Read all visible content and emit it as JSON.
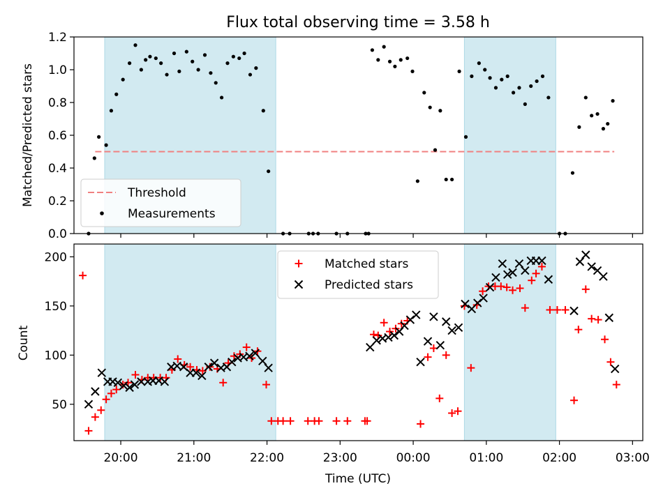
{
  "title": "Flux total observing time = 3.58 h",
  "colors": {
    "threshold": "#f08080",
    "measurement": "#000000",
    "matched": "#ff0000",
    "predicted": "#000000",
    "span": "#add8e6"
  },
  "x_ticks": [
    "20:00",
    "21:00",
    "22:00",
    "23:00",
    "00:00",
    "01:00",
    "02:00",
    "03:00"
  ],
  "chart_data": [
    {
      "type": "scatter",
      "ylabel": "Matched/Predicted stars",
      "xlabel": "",
      "x_unit": "hours since 20:00 UTC",
      "xlim": [
        -0.64,
        7.14
      ],
      "ylim": [
        0,
        1.2
      ],
      "y_ticks": [
        "0.0",
        "0.2",
        "0.4",
        "0.6",
        "0.8",
        "1.0",
        "1.2"
      ],
      "shaded_intervals": [
        [
          -0.22,
          2.12
        ],
        [
          4.7,
          5.95
        ]
      ],
      "legend": {
        "position": "lower-left",
        "entries": [
          "Threshold",
          "Measurements"
        ]
      },
      "threshold": {
        "name": "Threshold",
        "value": 0.5,
        "x_range": [
          -0.35,
          6.75
        ]
      },
      "measurements": {
        "name": "Measurements",
        "points": [
          [
            -0.44,
            0.0
          ],
          [
            -0.36,
            0.46
          ],
          [
            -0.3,
            0.59
          ],
          [
            -0.2,
            0.54
          ],
          [
            -0.13,
            0.75
          ],
          [
            -0.06,
            0.85
          ],
          [
            0.03,
            0.94
          ],
          [
            0.12,
            1.04
          ],
          [
            0.2,
            1.15
          ],
          [
            0.28,
            1.0
          ],
          [
            0.34,
            1.06
          ],
          [
            0.4,
            1.08
          ],
          [
            0.48,
            1.07
          ],
          [
            0.55,
            1.04
          ],
          [
            0.63,
            0.97
          ],
          [
            0.73,
            1.1
          ],
          [
            0.8,
            0.99
          ],
          [
            0.9,
            1.11
          ],
          [
            0.98,
            1.05
          ],
          [
            1.06,
            1.0
          ],
          [
            1.15,
            1.09
          ],
          [
            1.23,
            0.98
          ],
          [
            1.3,
            0.92
          ],
          [
            1.38,
            0.83
          ],
          [
            1.46,
            1.04
          ],
          [
            1.54,
            1.08
          ],
          [
            1.62,
            1.07
          ],
          [
            1.69,
            1.1
          ],
          [
            1.77,
            0.97
          ],
          [
            1.85,
            1.01
          ],
          [
            1.95,
            0.75
          ],
          [
            2.02,
            0.38
          ],
          [
            2.22,
            0.0
          ],
          [
            2.31,
            0.0
          ],
          [
            2.57,
            0.0
          ],
          [
            2.63,
            0.0
          ],
          [
            2.7,
            0.0
          ],
          [
            2.95,
            0.0
          ],
          [
            3.1,
            0.0
          ],
          [
            3.35,
            0.0
          ],
          [
            3.39,
            0.0
          ],
          [
            3.44,
            1.12
          ],
          [
            3.52,
            1.06
          ],
          [
            3.6,
            1.14
          ],
          [
            3.68,
            1.05
          ],
          [
            3.75,
            1.02
          ],
          [
            3.83,
            1.06
          ],
          [
            3.92,
            1.07
          ],
          [
            3.99,
            0.99
          ],
          [
            4.06,
            0.32
          ],
          [
            4.15,
            0.86
          ],
          [
            4.23,
            0.77
          ],
          [
            4.3,
            0.51
          ],
          [
            4.37,
            0.75
          ],
          [
            4.45,
            0.33
          ],
          [
            4.53,
            0.33
          ],
          [
            4.63,
            0.99
          ],
          [
            4.72,
            0.59
          ],
          [
            4.8,
            0.96
          ],
          [
            4.9,
            1.04
          ],
          [
            4.98,
            1.0
          ],
          [
            5.05,
            0.95
          ],
          [
            5.13,
            0.89
          ],
          [
            5.21,
            0.94
          ],
          [
            5.29,
            0.96
          ],
          [
            5.37,
            0.86
          ],
          [
            5.45,
            0.89
          ],
          [
            5.53,
            0.79
          ],
          [
            5.61,
            0.9
          ],
          [
            5.69,
            0.93
          ],
          [
            5.77,
            0.96
          ],
          [
            5.85,
            0.83
          ],
          [
            6.0,
            0.0
          ],
          [
            6.08,
            0.0
          ],
          [
            6.18,
            0.37
          ],
          [
            6.27,
            0.65
          ],
          [
            6.36,
            0.83
          ],
          [
            6.44,
            0.72
          ],
          [
            6.52,
            0.73
          ],
          [
            6.6,
            0.64
          ],
          [
            6.66,
            0.67
          ],
          [
            6.73,
            0.81
          ]
        ]
      }
    },
    {
      "type": "scatter",
      "ylabel": "Count",
      "xlabel": "Time (UTC)",
      "x_unit": "hours since 20:00 UTC",
      "xlim": [
        -0.64,
        7.14
      ],
      "ylim": [
        13,
        213
      ],
      "y_ticks": [
        "50",
        "100",
        "150",
        "200"
      ],
      "shaded_intervals": [
        [
          -0.22,
          2.12
        ],
        [
          4.7,
          5.95
        ]
      ],
      "legend": {
        "position": "upper-center",
        "entries": [
          "Matched stars",
          "Predicted stars"
        ]
      },
      "series": [
        {
          "name": "Matched stars",
          "marker": "plus",
          "points": [
            [
              -0.52,
              181
            ],
            [
              -0.44,
              23
            ],
            [
              -0.35,
              37
            ],
            [
              -0.27,
              44
            ],
            [
              -0.2,
              55
            ],
            [
              -0.13,
              61
            ],
            [
              -0.06,
              65
            ],
            [
              0.03,
              70
            ],
            [
              0.1,
              72
            ],
            [
              0.2,
              80
            ],
            [
              0.29,
              75
            ],
            [
              0.37,
              77
            ],
            [
              0.45,
              77
            ],
            [
              0.54,
              77
            ],
            [
              0.62,
              77
            ],
            [
              0.7,
              85
            ],
            [
              0.78,
              96
            ],
            [
              0.87,
              90
            ],
            [
              0.95,
              88
            ],
            [
              1.04,
              85
            ],
            [
              1.12,
              84
            ],
            [
              1.22,
              88
            ],
            [
              1.32,
              86
            ],
            [
              1.4,
              72
            ],
            [
              1.47,
              92
            ],
            [
              1.55,
              99
            ],
            [
              1.63,
              101
            ],
            [
              1.72,
              108
            ],
            [
              1.79,
              97
            ],
            [
              1.87,
              104
            ],
            [
              1.99,
              70
            ],
            [
              2.06,
              33
            ],
            [
              2.15,
              33
            ],
            [
              2.22,
              33
            ],
            [
              2.32,
              33
            ],
            [
              2.56,
              33
            ],
            [
              2.65,
              33
            ],
            [
              2.71,
              33
            ],
            [
              2.95,
              33
            ],
            [
              3.1,
              33
            ],
            [
              3.34,
              33
            ],
            [
              3.37,
              33
            ],
            [
              3.46,
              121
            ],
            [
              3.52,
              120
            ],
            [
              3.6,
              133
            ],
            [
              3.68,
              124
            ],
            [
              3.76,
              127
            ],
            [
              3.84,
              132
            ],
            [
              3.92,
              135
            ],
            [
              4.1,
              30
            ],
            [
              4.2,
              98
            ],
            [
              4.28,
              107
            ],
            [
              4.36,
              56
            ],
            [
              4.45,
              100
            ],
            [
              4.53,
              41
            ],
            [
              4.61,
              43
            ],
            [
              4.7,
              150
            ],
            [
              4.79,
              87
            ],
            [
              4.87,
              151
            ],
            [
              4.95,
              165
            ],
            [
              5.03,
              170
            ],
            [
              5.12,
              170
            ],
            [
              5.2,
              170
            ],
            [
              5.28,
              169
            ],
            [
              5.36,
              166
            ],
            [
              5.46,
              168
            ],
            [
              5.53,
              148
            ],
            [
              5.62,
              176
            ],
            [
              5.68,
              183
            ],
            [
              5.76,
              190
            ],
            [
              5.87,
              146
            ],
            [
              5.97,
              146
            ],
            [
              6.08,
              146
            ],
            [
              6.2,
              54
            ],
            [
              6.26,
              126
            ],
            [
              6.36,
              167
            ],
            [
              6.44,
              137
            ],
            [
              6.53,
              136
            ],
            [
              6.62,
              116
            ],
            [
              6.7,
              93
            ],
            [
              6.78,
              70
            ]
          ]
        },
        {
          "name": "Predicted stars",
          "marker": "x",
          "points": [
            [
              -0.44,
              50
            ],
            [
              -0.35,
              63
            ],
            [
              -0.26,
              82
            ],
            [
              -0.18,
              73
            ],
            [
              -0.11,
              73
            ],
            [
              -0.04,
              72
            ],
            [
              0.04,
              69
            ],
            [
              0.12,
              67
            ],
            [
              0.19,
              70
            ],
            [
              0.28,
              73
            ],
            [
              0.37,
              73
            ],
            [
              0.44,
              74
            ],
            [
              0.52,
              74
            ],
            [
              0.6,
              73
            ],
            [
              0.69,
              88
            ],
            [
              0.77,
              89
            ],
            [
              0.86,
              88
            ],
            [
              0.95,
              82
            ],
            [
              1.03,
              82
            ],
            [
              1.11,
              79
            ],
            [
              1.2,
              88
            ],
            [
              1.28,
              92
            ],
            [
              1.37,
              87
            ],
            [
              1.45,
              88
            ],
            [
              1.52,
              93
            ],
            [
              1.6,
              97
            ],
            [
              1.68,
              98
            ],
            [
              1.76,
              99
            ],
            [
              1.84,
              102
            ],
            [
              1.94,
              94
            ],
            [
              2.02,
              87
            ],
            [
              3.41,
              108
            ],
            [
              3.5,
              115
            ],
            [
              3.58,
              117
            ],
            [
              3.66,
              118
            ],
            [
              3.74,
              120
            ],
            [
              3.81,
              124
            ],
            [
              3.88,
              130
            ],
            [
              3.96,
              136
            ],
            [
              4.04,
              141
            ],
            [
              4.1,
              93
            ],
            [
              4.2,
              114
            ],
            [
              4.28,
              139
            ],
            [
              4.37,
              110
            ],
            [
              4.45,
              134
            ],
            [
              4.53,
              125
            ],
            [
              4.62,
              128
            ],
            [
              4.71,
              152
            ],
            [
              4.8,
              147
            ],
            [
              4.88,
              153
            ],
            [
              4.96,
              158
            ],
            [
              5.05,
              169
            ],
            [
              5.13,
              179
            ],
            [
              5.22,
              193
            ],
            [
              5.29,
              182
            ],
            [
              5.36,
              184
            ],
            [
              5.45,
              193
            ],
            [
              5.53,
              186
            ],
            [
              5.61,
              196
            ],
            [
              5.68,
              196
            ],
            [
              5.76,
              196
            ],
            [
              5.85,
              177
            ],
            [
              6.2,
              145
            ],
            [
              6.28,
              195
            ],
            [
              6.36,
              202
            ],
            [
              6.44,
              190
            ],
            [
              6.52,
              186
            ],
            [
              6.6,
              180
            ],
            [
              6.68,
              138
            ],
            [
              6.76,
              86
            ]
          ]
        }
      ]
    }
  ]
}
